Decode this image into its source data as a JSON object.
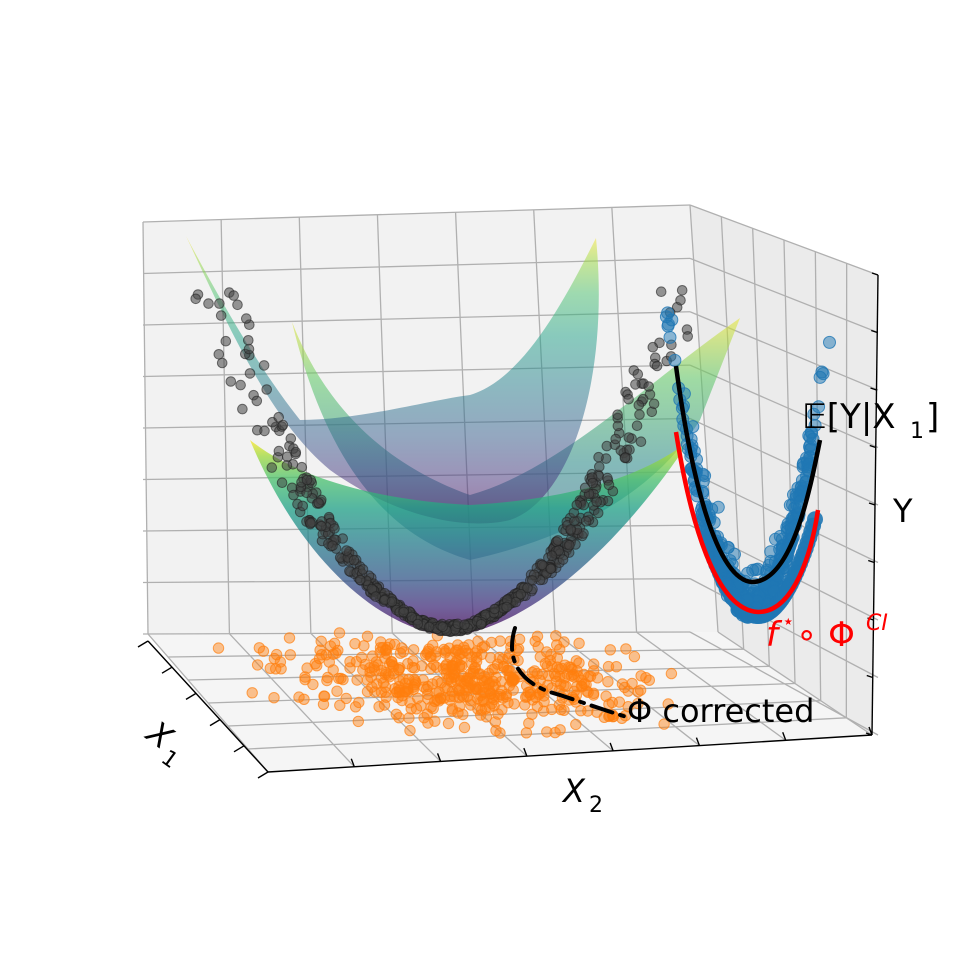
{
  "chart_data": {
    "type": "3d-surface-scatter",
    "axes": {
      "x1_label": "X",
      "x1_sub": "1",
      "x2_label": "X",
      "x2_sub": "2",
      "y_label": "Y",
      "grid": true
    },
    "surface": {
      "function": "Y = X1^2 + X2^2",
      "colormap": "viridis",
      "opacity": 0.6
    },
    "series": [
      {
        "marker": "circle",
        "color": "#444444",
        "description_of_role": "samples on surface"
      },
      {
        "marker": "circle",
        "color": "#ff7f0e"
      },
      {
        "marker": "circle",
        "color": "#1f77b4"
      }
    ],
    "annotations": {
      "conditional_expectation": {
        "prefix": "𝔼[Y|X",
        "sub": "1",
        "suffix": "]",
        "color": "#000000"
      },
      "composition": {
        "base": "f",
        "sup1": "⋆",
        "middle": "∘ Φ",
        "sup2": "CI",
        "color": "#ff0000"
      },
      "phi_corrected": {
        "text": "Φ corrected",
        "color": "#000000"
      }
    }
  }
}
